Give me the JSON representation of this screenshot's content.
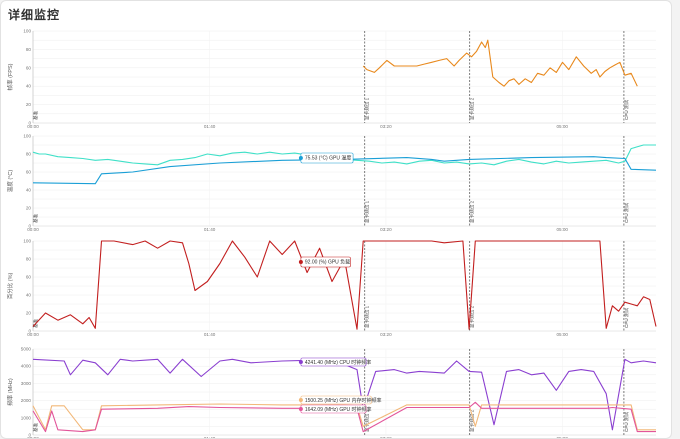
{
  "page": {
    "title": "详细监控"
  },
  "colors": {
    "fps": "#e8891d",
    "gpu_temp": "#1a9fd6",
    "cpu_temp": "#3fe0c8",
    "usage": "#c21f1f",
    "cpu_clock": "#8a3fd0",
    "gpu_mem_clock": "#f2b879",
    "gpu_clock": "#e2559a"
  },
  "x_ticks": [
    "00:00",
    "01:40",
    "03:20",
    "05:00"
  ],
  "events": [
    "基准",
    "显卡测试 1",
    "显卡测试 2",
    "CPU 测试"
  ],
  "chart_data": [
    {
      "type": "line",
      "ylabel": "帧率 (FPS)",
      "ylim": [
        0,
        100
      ],
      "grid": true,
      "series": [
        {
          "color_key": "fps",
          "x": [
            0.53,
            0.536,
            0.548,
            0.556,
            0.568,
            0.58,
            0.6,
            0.616,
            0.628,
            0.64,
            0.652,
            0.664,
            0.676,
            0.684,
            0.696,
            0.704,
            0.712,
            0.72,
            0.726,
            0.73,
            0.738,
            0.748,
            0.756,
            0.764,
            0.772,
            0.78,
            0.79,
            0.8,
            0.81,
            0.82,
            0.83,
            0.84,
            0.85,
            0.86,
            0.872,
            0.884,
            0.896,
            0.904,
            0.91,
            0.918,
            0.926,
            0.934,
            0.942,
            0.95,
            0.96,
            0.97
          ],
          "y": [
            62,
            58,
            55,
            60,
            68,
            62,
            62,
            62,
            64,
            66,
            68,
            70,
            62,
            68,
            76,
            72,
            78,
            88,
            82,
            90,
            50,
            44,
            40,
            46,
            48,
            42,
            48,
            44,
            54,
            52,
            60,
            55,
            66,
            58,
            72,
            62,
            54,
            58,
            50,
            56,
            60,
            63,
            66,
            52,
            54,
            40
          ]
        }
      ]
    },
    {
      "type": "line",
      "ylabel": "温度 (°C)",
      "ylim": [
        0,
        100
      ],
      "grid": true,
      "tooltips": [
        "75.53 (°C) GPU 温度"
      ],
      "series": [
        {
          "color_key": "cpu_temp",
          "x": [
            0.0,
            0.01,
            0.02,
            0.04,
            0.06,
            0.08,
            0.1,
            0.12,
            0.14,
            0.16,
            0.18,
            0.2,
            0.22,
            0.24,
            0.26,
            0.28,
            0.3,
            0.32,
            0.34,
            0.36,
            0.38,
            0.4,
            0.42,
            0.44,
            0.46,
            0.48,
            0.5,
            0.52,
            0.54,
            0.56,
            0.58,
            0.6,
            0.62,
            0.64,
            0.66,
            0.68,
            0.7,
            0.72,
            0.74,
            0.76,
            0.78,
            0.8,
            0.82,
            0.84,
            0.86,
            0.88,
            0.9,
            0.92,
            0.94,
            0.95,
            0.96,
            0.98,
            1.0
          ],
          "y": [
            82,
            80,
            80,
            77,
            76,
            75,
            73,
            74,
            72,
            70,
            69,
            68,
            73,
            74,
            76,
            80,
            78,
            81,
            82,
            80,
            82,
            80,
            81,
            79,
            78,
            77,
            74,
            73,
            72,
            70,
            71,
            69,
            72,
            73,
            70,
            71,
            69,
            70,
            68,
            72,
            74,
            71,
            69,
            72,
            70,
            71,
            72,
            73,
            70,
            72,
            86,
            90,
            90
          ]
        },
        {
          "color_key": "gpu_temp",
          "x": [
            0.0,
            0.1,
            0.11,
            0.16,
            0.22,
            0.3,
            0.4,
            0.5,
            0.6,
            0.64,
            0.66,
            0.7,
            0.8,
            0.9,
            0.92,
            0.95,
            0.96,
            1.0
          ],
          "y": [
            48,
            47,
            58,
            60,
            66,
            70,
            73,
            74,
            76,
            74,
            72,
            74,
            76,
            77,
            76,
            75,
            63,
            62
          ]
        }
      ]
    },
    {
      "type": "line",
      "ylabel": "百分比 (%)",
      "ylim": [
        0,
        100
      ],
      "grid": true,
      "tooltips": [
        "92.00 (%) GPU 负载"
      ],
      "series": [
        {
          "color_key": "usage",
          "x": [
            0.0,
            0.02,
            0.04,
            0.06,
            0.08,
            0.09,
            0.1,
            0.11,
            0.13,
            0.16,
            0.18,
            0.2,
            0.22,
            0.24,
            0.25,
            0.26,
            0.28,
            0.3,
            0.32,
            0.34,
            0.36,
            0.38,
            0.4,
            0.42,
            0.44,
            0.46,
            0.48,
            0.5,
            0.52,
            0.53,
            0.54,
            0.56,
            0.6,
            0.64,
            0.66,
            0.69,
            0.7,
            0.71,
            0.72,
            0.76,
            0.8,
            0.84,
            0.88,
            0.91,
            0.92,
            0.93,
            0.94,
            0.95,
            0.96,
            0.97,
            0.98,
            0.99,
            1.0
          ],
          "y": [
            5,
            20,
            12,
            18,
            8,
            15,
            3,
            100,
            100,
            96,
            100,
            92,
            100,
            98,
            75,
            45,
            55,
            75,
            100,
            82,
            60,
            100,
            85,
            100,
            65,
            92,
            55,
            80,
            2,
            100,
            100,
            100,
            100,
            100,
            98,
            100,
            2,
            100,
            100,
            100,
            100,
            100,
            100,
            100,
            3,
            28,
            22,
            32,
            30,
            28,
            38,
            35,
            5
          ]
        }
      ]
    },
    {
      "type": "line",
      "ylabel": "频率 (MHz)",
      "ylim": [
        0,
        5000
      ],
      "grid": true,
      "tooltips": [
        "4241.40 (MHz) CPU 时钟频率",
        "1500.25 (MHz) GPU 内存时钟频率",
        "1642.09 (MHz) GPU 时钟频率"
      ],
      "series": [
        {
          "color_key": "cpu_clock",
          "x": [
            0.0,
            0.05,
            0.06,
            0.08,
            0.1,
            0.12,
            0.14,
            0.16,
            0.2,
            0.22,
            0.24,
            0.27,
            0.3,
            0.32,
            0.35,
            0.4,
            0.45,
            0.5,
            0.52,
            0.53,
            0.55,
            0.58,
            0.6,
            0.62,
            0.64,
            0.66,
            0.68,
            0.7,
            0.72,
            0.74,
            0.76,
            0.78,
            0.8,
            0.82,
            0.84,
            0.86,
            0.88,
            0.9,
            0.92,
            0.93,
            0.95,
            0.96,
            0.98,
            1.0
          ],
          "y": [
            4400,
            4300,
            3500,
            4350,
            4200,
            3500,
            4400,
            4300,
            4400,
            3600,
            4400,
            3400,
            4300,
            4400,
            4200,
            4300,
            4350,
            4100,
            3800,
            1500,
            3700,
            3800,
            3600,
            3700,
            3650,
            3600,
            4300,
            3700,
            3650,
            600,
            3700,
            3800,
            3500,
            3600,
            2600,
            3700,
            3800,
            3700,
            2400,
            300,
            4400,
            4200,
            4300,
            4200
          ]
        },
        {
          "color_key": "gpu_mem_clock",
          "x": [
            0.0,
            0.02,
            0.03,
            0.05,
            0.08,
            0.1,
            0.11,
            0.2,
            0.3,
            0.4,
            0.5,
            0.52,
            0.53,
            0.6,
            0.7,
            0.71,
            0.72,
            0.8,
            0.9,
            0.92,
            0.93,
            0.96,
            0.97,
            1.0
          ],
          "y": [
            1700,
            300,
            1700,
            1700,
            300,
            300,
            1700,
            1750,
            1800,
            1750,
            1750,
            1700,
            500,
            1750,
            1750,
            500,
            1750,
            1750,
            1750,
            1750,
            1750,
            1750,
            300,
            300
          ]
        },
        {
          "color_key": "gpu_clock",
          "x": [
            0.0,
            0.02,
            0.03,
            0.04,
            0.08,
            0.1,
            0.11,
            0.2,
            0.25,
            0.3,
            0.4,
            0.5,
            0.52,
            0.53,
            0.6,
            0.7,
            0.71,
            0.72,
            0.8,
            0.9,
            0.92,
            0.93,
            0.96,
            0.97,
            1.0
          ],
          "y": [
            1400,
            200,
            1400,
            300,
            200,
            300,
            1500,
            1550,
            1650,
            1600,
            1550,
            1550,
            1550,
            200,
            1600,
            1600,
            1900,
            1550,
            1550,
            1550,
            1550,
            1600,
            1500,
            200,
            200
          ]
        }
      ]
    }
  ]
}
